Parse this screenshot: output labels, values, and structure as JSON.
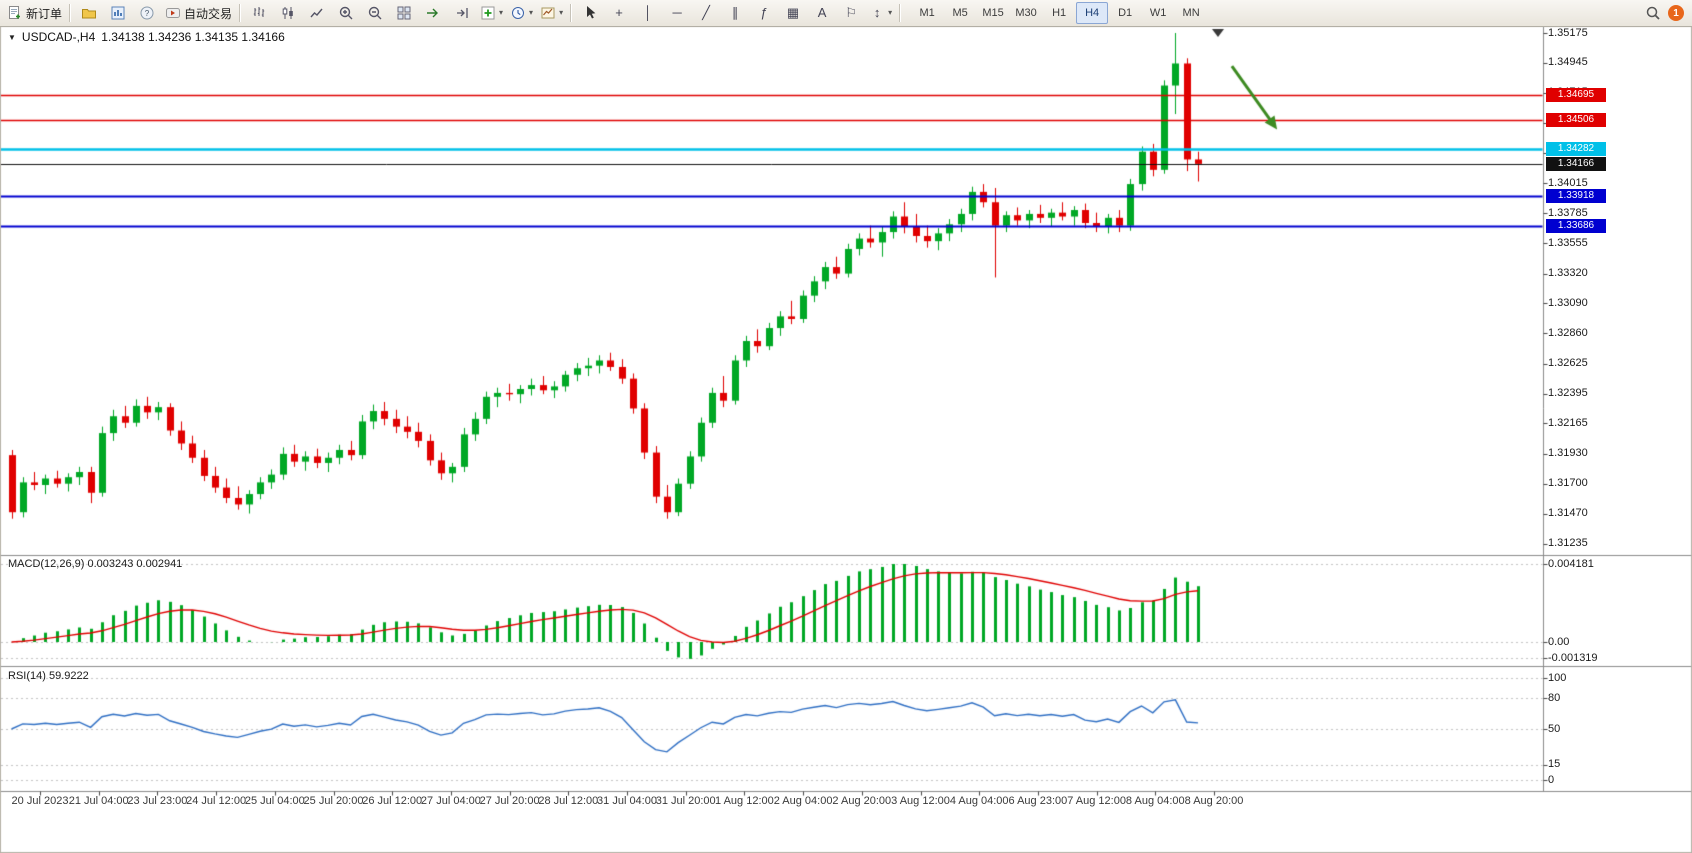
{
  "window": {
    "title_symbol": "USDCAD-,H4",
    "ohlc": "1.34138 1.34236 1.34135 1.34166"
  },
  "toolbar": {
    "new_order": "新订单",
    "autotrading": "自动交易",
    "timeframes": [
      "M1",
      "M5",
      "M15",
      "M30",
      "H1",
      "H4",
      "D1",
      "W1",
      "MN"
    ],
    "active_timeframe": "H4",
    "notification_count": "1"
  },
  "icons": {
    "caret": "▾",
    "collapse": "▼",
    "crosshair": "+",
    "vertical_line": "│",
    "horizontal_line": "─",
    "trendline": "╱",
    "channel": "∥",
    "fibonacci": "ƒ",
    "shapes": "▦",
    "text": "A",
    "text_label": "⚐",
    "arrows_tool": "↕"
  },
  "macd": {
    "title": "MACD(12,26,9)",
    "values": "0.003243 0.002941",
    "axis_labels": [
      "0.004181",
      "0.00",
      "-0.001319"
    ],
    "params": {
      "fast": 12,
      "slow": 26,
      "signal": 9
    }
  },
  "rsi": {
    "title": "RSI(14)",
    "value": "59.9222",
    "axis_labels": [
      "100",
      "80",
      "50",
      "15",
      "0"
    ],
    "levels": [
      80,
      50,
      15
    ],
    "period": 14
  },
  "chart_data": {
    "type": "candlestick",
    "symbol": "USDCAD",
    "period": "H4",
    "ylim": [
      1.31235,
      1.35175
    ],
    "price_axis_ticks": [
      "1.35175",
      "1.34945",
      "1.34715",
      "1.34480",
      "1.34250",
      "1.34015",
      "1.33785",
      "1.33555",
      "1.33320",
      "1.33090",
      "1.32860",
      "1.32625",
      "1.32395",
      "1.32165",
      "1.31930",
      "1.31700",
      "1.31470",
      "1.31235"
    ],
    "time_labels": [
      "20 Jul 2023",
      "21 Jul 04:00",
      "23 Jul 23:00",
      "24 Jul 12:00",
      "25 Jul 04:00",
      "25 Jul 20:00",
      "26 Jul 12:00",
      "27 Jul 04:00",
      "27 Jul 20:00",
      "28 Jul 12:00",
      "31 Jul 04:00",
      "31 Jul 20:00",
      "1 Aug 12:00",
      "2 Aug 04:00",
      "2 Aug 20:00",
      "3 Aug 12:00",
      "4 Aug 04:00",
      "6 Aug 23:00",
      "7 Aug 12:00",
      "8 Aug 04:00",
      "8 Aug 20:00"
    ],
    "price_lines": [
      {
        "price": 1.34695,
        "color": "#e00000",
        "label": "1.34695",
        "width": 1.4
      },
      {
        "price": 1.34506,
        "color": "#e00000",
        "label": "1.34506",
        "width": 1.4
      },
      {
        "price": 1.34282,
        "color": "#00c0e8",
        "label": "1.34282",
        "width": 2.4
      },
      {
        "price": 1.34166,
        "color": "#111111",
        "label": "1.34166",
        "width": 1
      },
      {
        "price": 1.33918,
        "color": "#0000d0",
        "label": "1.33918",
        "width": 1.8
      },
      {
        "price": 1.33686,
        "color": "#0000d0",
        "label": "1.33686",
        "width": 1.8
      }
    ],
    "arrow_annotation": {
      "from_index": 108,
      "from_price": 1.3492,
      "to_index": 112,
      "to_price": 1.3443,
      "color": "#3d8b22"
    },
    "colors": {
      "bull": "#00a825",
      "bear": "#e00000",
      "background": "#ffffff",
      "macd_hist": "#00a825",
      "macd_signal": "#e00000",
      "rsi_line": "#2f6fc4"
    },
    "candles": [
      [
        1.3192,
        1.3196,
        1.3143,
        1.3148
      ],
      [
        1.3148,
        1.3175,
        1.3144,
        1.3171
      ],
      [
        1.3171,
        1.3179,
        1.3165,
        1.3169
      ],
      [
        1.3169,
        1.3177,
        1.3162,
        1.3174
      ],
      [
        1.3174,
        1.318,
        1.3167,
        1.317
      ],
      [
        1.317,
        1.3178,
        1.3164,
        1.3175
      ],
      [
        1.3175,
        1.3183,
        1.3169,
        1.3179
      ],
      [
        1.3179,
        1.3183,
        1.3155,
        1.3163
      ],
      [
        1.3163,
        1.3214,
        1.316,
        1.3209
      ],
      [
        1.3209,
        1.3227,
        1.3203,
        1.3222
      ],
      [
        1.3222,
        1.323,
        1.3213,
        1.3217
      ],
      [
        1.3217,
        1.3235,
        1.3214,
        1.323
      ],
      [
        1.323,
        1.3237,
        1.322,
        1.3225
      ],
      [
        1.3225,
        1.3233,
        1.3219,
        1.3229
      ],
      [
        1.3229,
        1.3232,
        1.3207,
        1.3211
      ],
      [
        1.3211,
        1.3218,
        1.3196,
        1.3201
      ],
      [
        1.3201,
        1.3207,
        1.3186,
        1.319
      ],
      [
        1.319,
        1.3196,
        1.3172,
        1.3176
      ],
      [
        1.3176,
        1.3183,
        1.3163,
        1.3167
      ],
      [
        1.3167,
        1.3174,
        1.3155,
        1.3159
      ],
      [
        1.3159,
        1.3168,
        1.315,
        1.3154
      ],
      [
        1.3154,
        1.3165,
        1.3147,
        1.3162
      ],
      [
        1.3162,
        1.3175,
        1.3158,
        1.3171
      ],
      [
        1.3171,
        1.3181,
        1.3166,
        1.3177
      ],
      [
        1.3177,
        1.3198,
        1.3173,
        1.3193
      ],
      [
        1.3193,
        1.32,
        1.3183,
        1.3187
      ],
      [
        1.3187,
        1.3195,
        1.318,
        1.3191
      ],
      [
        1.3191,
        1.3197,
        1.3182,
        1.3186
      ],
      [
        1.3186,
        1.3194,
        1.3179,
        1.319
      ],
      [
        1.319,
        1.32,
        1.3185,
        1.3196
      ],
      [
        1.3196,
        1.3203,
        1.3188,
        1.3192
      ],
      [
        1.3192,
        1.3223,
        1.3189,
        1.3218
      ],
      [
        1.3218,
        1.3231,
        1.3212,
        1.3226
      ],
      [
        1.3226,
        1.3233,
        1.3215,
        1.322
      ],
      [
        1.322,
        1.3227,
        1.3209,
        1.3214
      ],
      [
        1.3214,
        1.3222,
        1.3205,
        1.321
      ],
      [
        1.321,
        1.3217,
        1.3198,
        1.3203
      ],
      [
        1.3203,
        1.3208,
        1.3184,
        1.3188
      ],
      [
        1.3188,
        1.3194,
        1.3173,
        1.3178
      ],
      [
        1.3178,
        1.3186,
        1.3171,
        1.3183
      ],
      [
        1.3183,
        1.3213,
        1.3179,
        1.3208
      ],
      [
        1.3208,
        1.3225,
        1.3203,
        1.322
      ],
      [
        1.322,
        1.3241,
        1.3216,
        1.3237
      ],
      [
        1.3237,
        1.3244,
        1.3229,
        1.324
      ],
      [
        1.324,
        1.3247,
        1.3234,
        1.3239
      ],
      [
        1.3239,
        1.3246,
        1.3232,
        1.3243
      ],
      [
        1.3243,
        1.3251,
        1.3238,
        1.3246
      ],
      [
        1.3246,
        1.3253,
        1.3239,
        1.3242
      ],
      [
        1.3242,
        1.3249,
        1.3236,
        1.3245
      ],
      [
        1.3245,
        1.3257,
        1.3241,
        1.3254
      ],
      [
        1.3254,
        1.3263,
        1.3249,
        1.3259
      ],
      [
        1.3259,
        1.3267,
        1.3253,
        1.3261
      ],
      [
        1.3261,
        1.3269,
        1.3255,
        1.3265
      ],
      [
        1.3265,
        1.3271,
        1.3257,
        1.326
      ],
      [
        1.326,
        1.3266,
        1.3247,
        1.3251
      ],
      [
        1.3251,
        1.3255,
        1.3224,
        1.3228
      ],
      [
        1.3228,
        1.3232,
        1.3189,
        1.3194
      ],
      [
        1.3194,
        1.3199,
        1.3155,
        1.316
      ],
      [
        1.316,
        1.3169,
        1.3143,
        1.3148
      ],
      [
        1.3148,
        1.3174,
        1.3145,
        1.317
      ],
      [
        1.317,
        1.3195,
        1.3166,
        1.3191
      ],
      [
        1.3191,
        1.3221,
        1.3187,
        1.3217
      ],
      [
        1.3217,
        1.3244,
        1.3213,
        1.324
      ],
      [
        1.324,
        1.3253,
        1.3229,
        1.3234
      ],
      [
        1.3234,
        1.3269,
        1.3231,
        1.3265
      ],
      [
        1.3265,
        1.3284,
        1.326,
        1.328
      ],
      [
        1.328,
        1.3289,
        1.3271,
        1.3276
      ],
      [
        1.3276,
        1.3294,
        1.3273,
        1.329
      ],
      [
        1.329,
        1.3303,
        1.3284,
        1.3299
      ],
      [
        1.3299,
        1.3311,
        1.3293,
        1.3297
      ],
      [
        1.3297,
        1.3319,
        1.3294,
        1.3315
      ],
      [
        1.3315,
        1.333,
        1.331,
        1.3326
      ],
      [
        1.3326,
        1.3341,
        1.332,
        1.3337
      ],
      [
        1.3337,
        1.3345,
        1.3328,
        1.3332
      ],
      [
        1.3332,
        1.3355,
        1.3329,
        1.3351
      ],
      [
        1.3351,
        1.3363,
        1.3346,
        1.3359
      ],
      [
        1.3359,
        1.3369,
        1.3352,
        1.3356
      ],
      [
        1.3356,
        1.3368,
        1.3345,
        1.3364
      ],
      [
        1.3364,
        1.338,
        1.3359,
        1.3376
      ],
      [
        1.3376,
        1.3387,
        1.3363,
        1.3368
      ],
      [
        1.3368,
        1.3378,
        1.3356,
        1.3361
      ],
      [
        1.3361,
        1.3369,
        1.3352,
        1.3357
      ],
      [
        1.3357,
        1.3367,
        1.335,
        1.3363
      ],
      [
        1.3363,
        1.3374,
        1.3357,
        1.337
      ],
      [
        1.337,
        1.3382,
        1.3364,
        1.3378
      ],
      [
        1.3378,
        1.3399,
        1.3373,
        1.3395
      ],
      [
        1.3395,
        1.3401,
        1.3383,
        1.3387
      ],
      [
        1.3387,
        1.3398,
        1.3329,
        1.3369
      ],
      [
        1.3369,
        1.338,
        1.3364,
        1.3377
      ],
      [
        1.3377,
        1.3383,
        1.3369,
        1.3373
      ],
      [
        1.3373,
        1.3381,
        1.3367,
        1.3378
      ],
      [
        1.3378,
        1.3385,
        1.3371,
        1.3375
      ],
      [
        1.3375,
        1.3382,
        1.3368,
        1.3379
      ],
      [
        1.3379,
        1.3387,
        1.3373,
        1.3376
      ],
      [
        1.3376,
        1.3384,
        1.3369,
        1.3381
      ],
      [
        1.3381,
        1.3386,
        1.3367,
        1.3371
      ],
      [
        1.3371,
        1.3379,
        1.3364,
        1.3368
      ],
      [
        1.3368,
        1.3378,
        1.3363,
        1.3375
      ],
      [
        1.3375,
        1.3381,
        1.3364,
        1.3369
      ],
      [
        1.3369,
        1.3405,
        1.3365,
        1.3401
      ],
      [
        1.3401,
        1.343,
        1.3396,
        1.3426
      ],
      [
        1.3426,
        1.3432,
        1.3407,
        1.3412
      ],
      [
        1.3412,
        1.3481,
        1.3409,
        1.3477
      ],
      [
        1.3477,
        1.35175,
        1.3455,
        1.3494
      ],
      [
        1.3494,
        1.3498,
        1.3411,
        1.342
      ],
      [
        1.342,
        1.3426,
        1.3403,
        1.34166
      ]
    ]
  }
}
